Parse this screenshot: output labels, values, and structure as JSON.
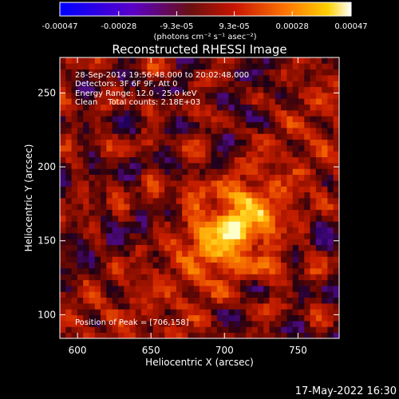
{
  "chart_data": {
    "type": "heatmap",
    "title": "Reconstructed RHESSI Image",
    "xlabel": "Heliocentric X (arcsec)",
    "ylabel": "Heliocentric Y (arcsec)",
    "xlim": [
      588,
      778
    ],
    "ylim": [
      84,
      274
    ],
    "x_ticks": [
      600,
      650,
      700,
      750
    ],
    "y_ticks": [
      100,
      150,
      200,
      250
    ],
    "colorbar": {
      "ticks": [
        -0.00047,
        -0.00028,
        -9.3e-05,
        9.3e-05,
        0.00028,
        0.00047
      ],
      "tick_labels": [
        "-0.00047",
        "-0.00028",
        "-9.3e-05",
        "9.3e-05",
        "0.00028",
        "0.00047"
      ],
      "range": [
        -0.00047,
        0.00047
      ],
      "unit_label": "(photons cm⁻² s⁻¹ asec⁻²)"
    },
    "annotations": [
      "28-Sep-2014 19:56:48.000 to 20:02:48.000",
      "Detectors: 3F 6F 9F, Att 0",
      "Energy Range: 12.0 - 25.0 keV",
      "Clean    Total counts: 2.18E+03"
    ],
    "peak": {
      "label": "Position of Peak = [706,158]",
      "x": 706,
      "y": 158
    },
    "grid": false,
    "grid_n": 48
  },
  "footer": {
    "timestamp": "17-May-2022 16:30"
  }
}
